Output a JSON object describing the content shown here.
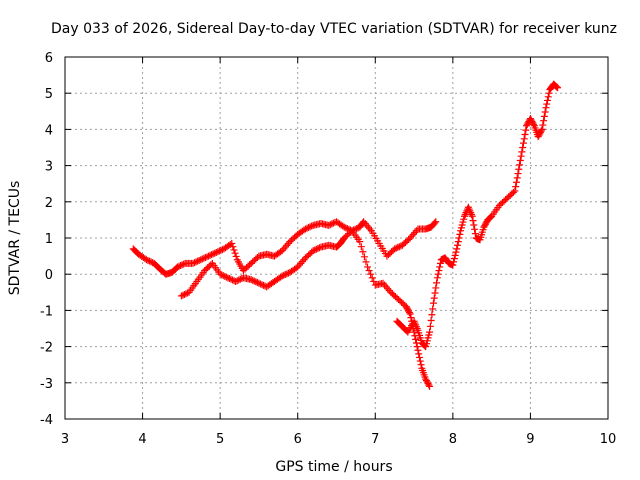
{
  "chart_data": {
    "type": "scatter",
    "title": "Day 033 of 2026, Sidereal Day-to-day VTEC variation (SDTVAR) for receiver kunz",
    "xlabel": "GPS time / hours",
    "ylabel": "SDTVAR / TECUs",
    "xlim": [
      3,
      10
    ],
    "ylim": [
      -4,
      6
    ],
    "xticks": [
      "3",
      "4",
      "5",
      "6",
      "7",
      "8",
      "9",
      "10"
    ],
    "yticks": [
      "-4",
      "-3",
      "-2",
      "-1",
      "0",
      "1",
      "2",
      "3",
      "4",
      "5",
      "6"
    ],
    "grid": true,
    "marker": "+",
    "color": "#ff0000",
    "series": [
      {
        "x": [
          3.88,
          3.95,
          4.05,
          4.15,
          4.22,
          4.3,
          4.38,
          4.45,
          4.55,
          4.65,
          4.75,
          4.85,
          4.95,
          5.05,
          5.15,
          5.22,
          5.3,
          5.4,
          5.5,
          5.6,
          5.7,
          5.8,
          5.9,
          6.0,
          6.1,
          6.2,
          6.3,
          6.4,
          6.5,
          6.6,
          6.7,
          6.8,
          6.85,
          6.95,
          7.05,
          7.15,
          7.25,
          7.35,
          7.45,
          7.55,
          7.65,
          7.72,
          7.78
        ],
        "y": [
          0.7,
          0.55,
          0.4,
          0.3,
          0.15,
          0.0,
          0.05,
          0.2,
          0.3,
          0.3,
          0.4,
          0.5,
          0.6,
          0.7,
          0.85,
          0.4,
          0.1,
          0.3,
          0.5,
          0.55,
          0.5,
          0.65,
          0.9,
          1.1,
          1.25,
          1.35,
          1.4,
          1.35,
          1.45,
          1.3,
          1.2,
          1.3,
          1.45,
          1.2,
          0.85,
          0.5,
          0.7,
          0.8,
          1.0,
          1.25,
          1.25,
          1.3,
          1.45
        ]
      },
      {
        "x": [
          4.5,
          4.6,
          4.7,
          4.8,
          4.9,
          5.0,
          5.1,
          5.2,
          5.3,
          5.4,
          5.5,
          5.6,
          5.7,
          5.8,
          5.9,
          6.0,
          6.1,
          6.2,
          6.3,
          6.4,
          6.5,
          6.55,
          6.6,
          6.7,
          6.8,
          6.9,
          7.0,
          7.1,
          7.2,
          7.3,
          7.4,
          7.45,
          7.5,
          7.55,
          7.6,
          7.65,
          7.7
        ],
        "y": [
          -0.6,
          -0.5,
          -0.2,
          0.1,
          0.3,
          0.0,
          -0.1,
          -0.2,
          -0.1,
          -0.15,
          -0.25,
          -0.35,
          -0.2,
          -0.05,
          0.05,
          0.2,
          0.45,
          0.65,
          0.75,
          0.8,
          0.75,
          0.85,
          1.0,
          1.2,
          0.9,
          0.2,
          -0.3,
          -0.25,
          -0.5,
          -0.7,
          -0.9,
          -1.1,
          -1.6,
          -2.1,
          -2.6,
          -2.9,
          -3.1
        ]
      },
      {
        "x": [
          7.28,
          7.35,
          7.42,
          7.5,
          7.55,
          7.6,
          7.65,
          7.7,
          7.75,
          7.8,
          7.85,
          7.9,
          7.95,
          8.0,
          8.05,
          8.1,
          8.15,
          8.2,
          8.25,
          8.3,
          8.35,
          8.4,
          8.45,
          8.5,
          8.6,
          8.7,
          8.8,
          8.85,
          8.9,
          8.95,
          9.0,
          9.05,
          9.1,
          9.15,
          9.2,
          9.25,
          9.3,
          9.35
        ],
        "y": [
          -1.3,
          -1.45,
          -1.6,
          -1.3,
          -1.55,
          -1.9,
          -2.0,
          -1.6,
          -0.8,
          -0.1,
          0.4,
          0.45,
          0.3,
          0.25,
          0.7,
          1.2,
          1.6,
          1.85,
          1.6,
          1.0,
          0.95,
          1.3,
          1.5,
          1.6,
          1.9,
          2.1,
          2.3,
          2.9,
          3.5,
          4.1,
          4.3,
          4.1,
          3.8,
          4.0,
          4.6,
          5.1,
          5.25,
          5.15
        ]
      }
    ]
  }
}
